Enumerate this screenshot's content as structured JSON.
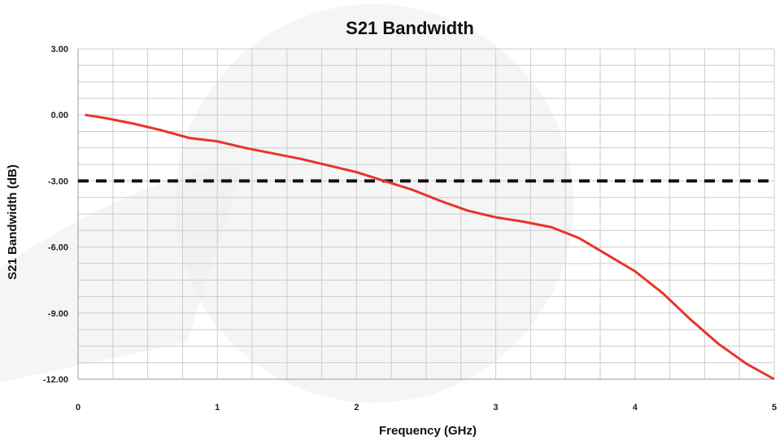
{
  "chart_data": {
    "type": "line",
    "title": "S21 Bandwidth",
    "xlabel": "Frequency (GHz)",
    "ylabel": "S21 Bandwidth (dB)",
    "xlim": [
      0,
      5
    ],
    "ylim": [
      -12,
      3
    ],
    "x_ticks": [
      "0",
      "1",
      "2",
      "3",
      "4",
      "5"
    ],
    "y_ticks": [
      "3.00",
      "0.00",
      "-3.00",
      "-6.00",
      "-9.00",
      "-12.00"
    ],
    "grid": true,
    "colors": {
      "series": "#e8342a",
      "reference": "#111111",
      "grid": "#cccccc",
      "watermark": "#e8e8e8"
    },
    "series": [
      {
        "x": [
          0.05,
          0.2,
          0.4,
          0.6,
          0.8,
          1.0,
          1.2,
          1.4,
          1.6,
          1.8,
          2.0,
          2.2,
          2.4,
          2.6,
          2.8,
          3.0,
          3.2,
          3.4,
          3.6,
          3.8,
          4.0,
          4.2,
          4.4,
          4.6,
          4.8,
          5.0
        ],
        "values": [
          0.0,
          -0.15,
          -0.4,
          -0.7,
          -1.05,
          -1.2,
          -1.5,
          -1.75,
          -2.0,
          -2.3,
          -2.6,
          -3.0,
          -3.4,
          -3.9,
          -4.35,
          -4.65,
          -4.85,
          -5.1,
          -5.6,
          -6.35,
          -7.1,
          -8.1,
          -9.3,
          -10.4,
          -11.3,
          -12.0
        ]
      },
      {
        "x": [
          0,
          5
        ],
        "values": [
          -3.0,
          -3.0
        ]
      }
    ]
  }
}
